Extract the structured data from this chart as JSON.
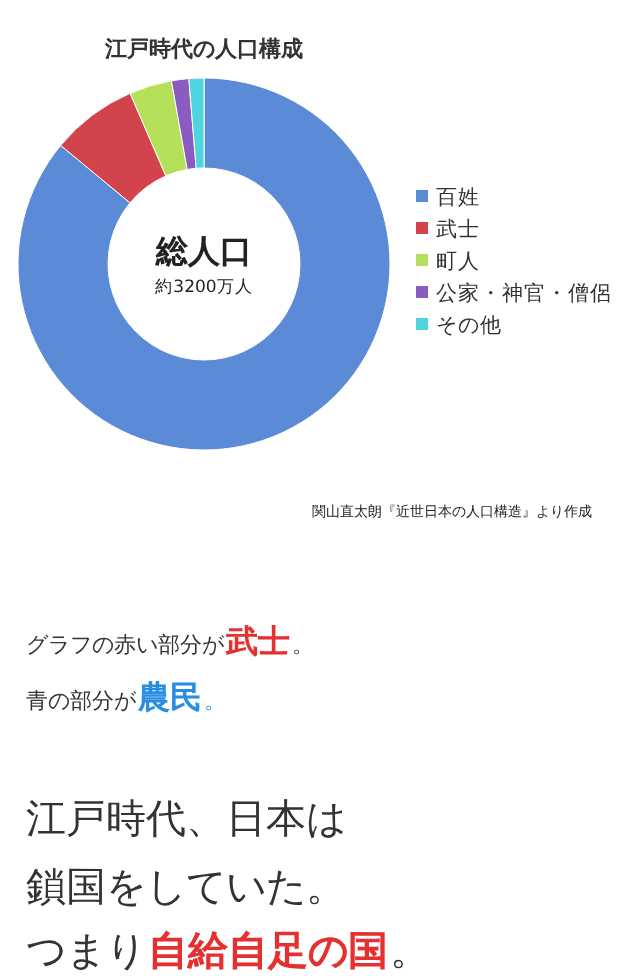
{
  "chart_data": {
    "type": "donut",
    "title": "江戸時代の人口構成",
    "categories": [
      "百姓",
      "武士",
      "町人",
      "公家・神官・僧侶",
      "その他"
    ],
    "values": [
      86,
      7.5,
      3.7,
      1.5,
      1.3
    ],
    "colors": [
      "#5b8bd6",
      "#d2434b",
      "#b5e05a",
      "#8b5cc0",
      "#4fd4e0"
    ],
    "legend": "right",
    "annotations": [
      "総人口",
      "約3200万人",
      "関山直太朗『近世日本の人口構造』より作成",
      "グラフの赤い部分が",
      "武士",
      "。",
      "青の部分が",
      "農民",
      "。",
      "江戸時代、日本は",
      "鎖国をしていた。",
      "つまり",
      "自給自足の国",
      "。"
    ]
  }
}
